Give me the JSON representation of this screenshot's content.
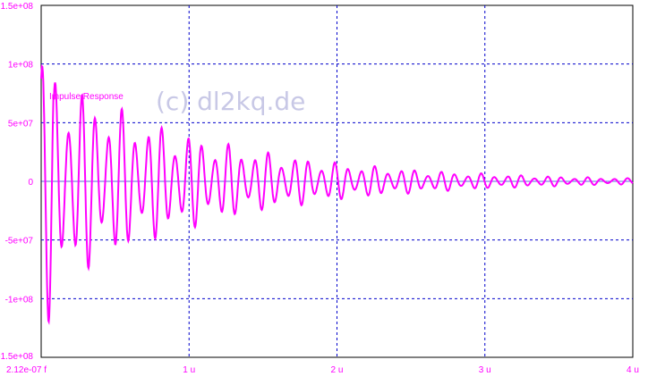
{
  "chart_data": {
    "type": "line",
    "title": "",
    "xlabel": "",
    "ylabel": "",
    "x_unit": "s",
    "xlim": [
      0,
      4e-06
    ],
    "ylim": [
      -150000000.0,
      150000000.0
    ],
    "x_ticks": [
      {
        "value": 0,
        "label": "2.12e-07 f"
      },
      {
        "value": 1e-06,
        "label": "1 u"
      },
      {
        "value": 2e-06,
        "label": "2 u"
      },
      {
        "value": 3e-06,
        "label": "3 u"
      },
      {
        "value": 4e-06,
        "label": "4 u"
      }
    ],
    "y_ticks": [
      {
        "value": 150000000.0,
        "label": "1.5e+08"
      },
      {
        "value": 100000000.0,
        "label": "1e+08"
      },
      {
        "value": 50000000.0,
        "label": "5e+07"
      },
      {
        "value": 0,
        "label": "0"
      },
      {
        "value": -50000000.0,
        "label": "-5e+07"
      },
      {
        "value": -100000000.0,
        "label": "-1e+08"
      },
      {
        "value": -150000000.0,
        "label": "-1.5e+08"
      }
    ],
    "grid": true,
    "series": [
      {
        "name": "Impulse Response",
        "color": "#ff00ff",
        "description_points": [
          [
            0.0,
            90000000.0
          ],
          [
            2e-08,
            -70000000.0
          ],
          [
            5e-08,
            70000000.0
          ],
          [
            8e-08,
            -90000000.0
          ],
          [
            1e-07,
            65000000.0
          ],
          [
            1.2e-07,
            -107000000.0
          ],
          [
            3e-07,
            65000000.0
          ],
          [
            3.3e-07,
            -75000000.0
          ],
          [
            5e-07,
            55000000.0
          ],
          [
            5.5e-07,
            -50000000.0
          ],
          [
            8e-07,
            45000000.0
          ],
          [
            9e-07,
            -45000000.0
          ],
          [
            1e-06,
            35000000.0
          ],
          [
            1.05e-06,
            -30000000.0
          ],
          [
            1.4e-06,
            25000000.0
          ],
          [
            1.5e-06,
            -20000000.0
          ],
          [
            2e-06,
            15000000.0
          ],
          [
            2.05e-06,
            -15000000.0
          ],
          [
            2.5e-06,
            8000000.0
          ],
          [
            2.6e-06,
            -6000000.0
          ],
          [
            3e-06,
            4000000.0
          ],
          [
            3.5e-06,
            2500000.0
          ],
          [
            4e-06,
            1500000.0
          ]
        ]
      }
    ],
    "envelope": {
      "a0": 75000000.0,
      "decay_tau": 1.1e-06,
      "period": 9e-08
    }
  },
  "labels": {
    "series_label": "Impulse Response",
    "watermark": "(c) dl2kq.de"
  },
  "colors": {
    "grid": "#0000cc",
    "axis_text": "#ff00ff",
    "trace": "#ff00ff",
    "watermark": "#c8c8e6",
    "frame": "#000000",
    "background": "#ffffff"
  }
}
